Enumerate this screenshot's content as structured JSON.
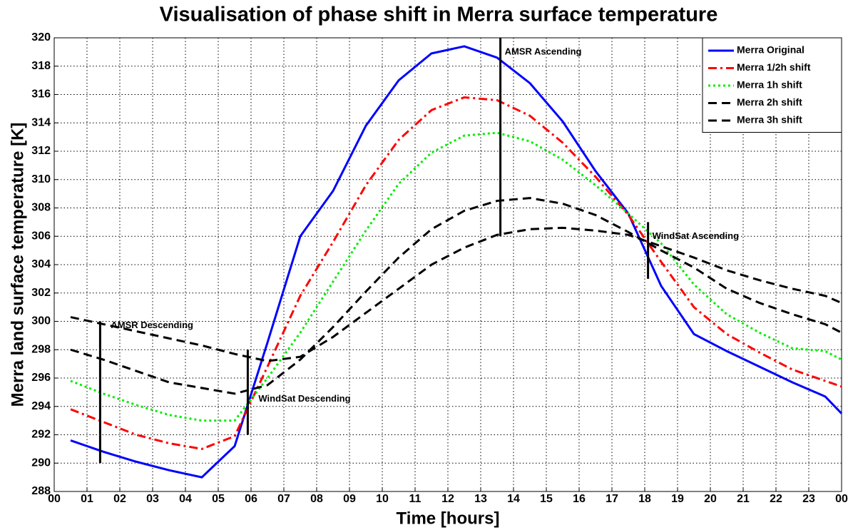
{
  "chart_data": {
    "type": "line",
    "title": "Visualisation of phase shift in Merra surface temperature",
    "x_label": "Time [hours]",
    "y_label": "Merra land surface temperature [K]",
    "x": [
      0.5,
      1.5,
      2.5,
      3.5,
      4.5,
      5.5,
      6.5,
      7.5,
      8.5,
      9.5,
      10.5,
      11.5,
      12.5,
      13.5,
      14.5,
      15.5,
      16.5,
      17.5,
      18.5,
      19.5,
      20.5,
      21.5,
      22.5,
      23.5,
      24
    ],
    "series": [
      {
        "name": "Merra Original",
        "color": "#0000ff",
        "style": "solid",
        "values": [
          291.6,
          290.8,
          290.1,
          289.5,
          289.0,
          291.2,
          298.5,
          306.0,
          309.2,
          313.8,
          317.0,
          318.9,
          319.4,
          318.6,
          316.8,
          314.1,
          310.6,
          307.6,
          302.5,
          299.1,
          297.9,
          296.8,
          295.7,
          294.7,
          293.5
        ]
      },
      {
        "name": "Merra 1/2h shift",
        "color": "#ff0000",
        "style": "dashdot",
        "values": [
          293.8,
          292.9,
          292.0,
          291.4,
          291.0,
          291.9,
          296.8,
          301.8,
          305.6,
          309.6,
          312.8,
          314.9,
          315.8,
          315.6,
          314.5,
          312.6,
          310.2,
          307.5,
          304.2,
          301.0,
          299.1,
          297.8,
          296.6,
          295.8,
          295.4
        ]
      },
      {
        "name": "Merra 1h shift",
        "color": "#00ee00",
        "style": "dotted",
        "values": [
          295.8,
          294.9,
          294.1,
          293.4,
          293.0,
          293.0,
          296.0,
          299.2,
          302.8,
          306.4,
          309.7,
          311.9,
          313.1,
          313.3,
          312.7,
          311.4,
          309.6,
          307.6,
          305.5,
          302.6,
          300.5,
          299.2,
          298.1,
          297.9,
          297.3
        ]
      },
      {
        "name": "Merra 2h shift",
        "color": "#000000",
        "style": "dashed",
        "values": [
          298.0,
          297.3,
          296.5,
          295.7,
          295.3,
          294.9,
          295.5,
          297.3,
          299.6,
          302.1,
          304.5,
          306.5,
          307.8,
          308.5,
          308.7,
          308.3,
          307.5,
          306.3,
          305.0,
          303.8,
          302.3,
          301.3,
          300.5,
          299.8,
          299.2
        ]
      },
      {
        "name": "Merra 3h shift",
        "color": "#000000",
        "style": "dashed",
        "values": [
          300.3,
          299.8,
          299.3,
          298.8,
          298.3,
          297.7,
          297.2,
          297.5,
          298.9,
          300.6,
          302.3,
          304.0,
          305.2,
          306.1,
          306.5,
          306.6,
          306.4,
          306.1,
          305.3,
          304.5,
          303.6,
          302.9,
          302.3,
          301.8,
          301.3
        ]
      }
    ],
    "xlim": [
      0,
      24
    ],
    "xticks": [
      {
        "value": 0,
        "label": "00"
      },
      {
        "value": 1,
        "label": "01"
      },
      {
        "value": 2,
        "label": "02"
      },
      {
        "value": 3,
        "label": "03"
      },
      {
        "value": 4,
        "label": "04"
      },
      {
        "value": 5,
        "label": "05"
      },
      {
        "value": 6,
        "label": "06"
      },
      {
        "value": 7,
        "label": "07"
      },
      {
        "value": 8,
        "label": "08"
      },
      {
        "value": 9,
        "label": "09"
      },
      {
        "value": 10,
        "label": "10"
      },
      {
        "value": 11,
        "label": "11"
      },
      {
        "value": 12,
        "label": "12"
      },
      {
        "value": 13,
        "label": "13"
      },
      {
        "value": 14,
        "label": "14"
      },
      {
        "value": 15,
        "label": "15"
      },
      {
        "value": 16,
        "label": "16"
      },
      {
        "value": 17,
        "label": "17"
      },
      {
        "value": 18,
        "label": "18"
      },
      {
        "value": 19,
        "label": "19"
      },
      {
        "value": 20,
        "label": "20"
      },
      {
        "value": 21,
        "label": "21"
      },
      {
        "value": 22,
        "label": "22"
      },
      {
        "value": 23,
        "label": "23"
      },
      {
        "value": 24,
        "label": "00"
      }
    ],
    "ylim": [
      288,
      320
    ],
    "yticks": [
      288,
      290,
      292,
      294,
      296,
      298,
      300,
      302,
      304,
      306,
      308,
      310,
      312,
      314,
      316,
      318,
      320
    ],
    "grid": true,
    "legend": "top-right",
    "annotations": [
      {
        "text": "AMSR Descending",
        "x": 1.4,
        "y": [
          290,
          300
        ]
      },
      {
        "text": "WindSat Descending",
        "x": 5.9,
        "y": [
          292,
          298
        ]
      },
      {
        "text": "AMSR Ascending",
        "x": 13.6,
        "y": [
          306,
          320
        ]
      },
      {
        "text": "WindSat Ascending",
        "x": 18.1,
        "y": [
          303,
          307
        ]
      }
    ]
  }
}
